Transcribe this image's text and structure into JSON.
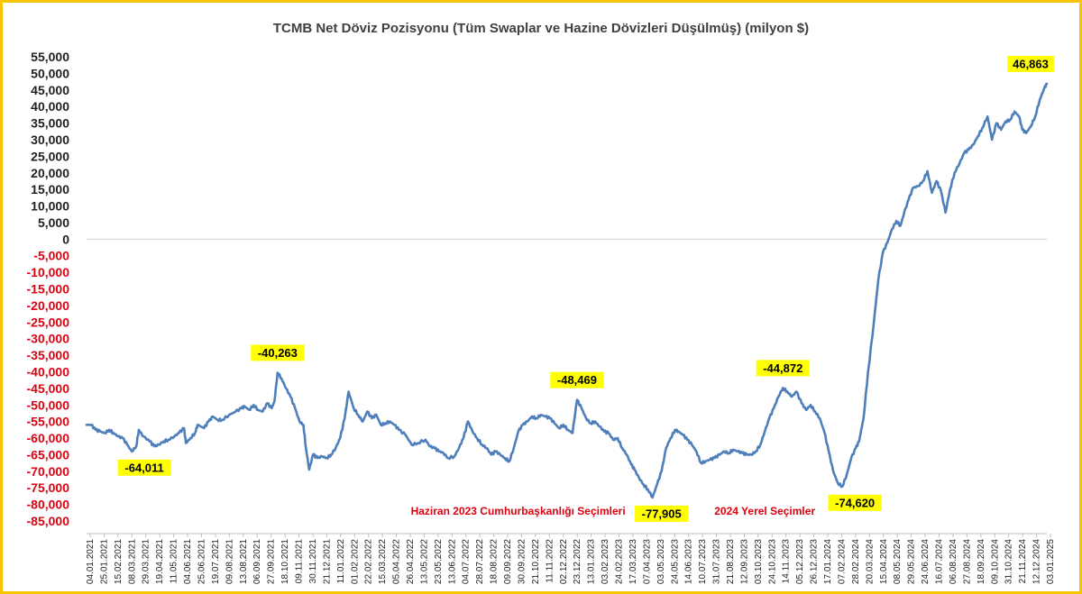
{
  "chart_data": {
    "type": "line",
    "title": "TCMB Net Döviz Pozisyonu (Tüm Swaplar ve Hazine Dövizleri Düşülmüş) (milyon $)",
    "xlabel": "",
    "ylabel": "",
    "ylim": [
      -85000,
      55000
    ],
    "ystep": 5000,
    "grid": false,
    "legend": "none",
    "line_color": "#4f7fbb",
    "positive_tick_color": "#1f1f1f",
    "negative_tick_color": "#e0000f",
    "label_bg_color": "#ffff00",
    "annotation_color": "#e0000f",
    "xlim": [
      "2021-01-04",
      "2025-01-31"
    ],
    "x_ticks": [
      "04.01.2021",
      "25.01.2021",
      "15.02.2021",
      "08.03.2021",
      "29.03.2021",
      "19.04.2021",
      "11.05.2021",
      "04.06.2021",
      "25.06.2021",
      "19.07.2021",
      "09.08.2021",
      "13.08.2021",
      "06.09.2021",
      "27.09.2021",
      "18.10.2021",
      "09.11.2021",
      "30.11.2021",
      "21.12.2021",
      "11.01.2022",
      "01.02.2022",
      "22.02.2022",
      "15.03.2022",
      "05.04.2022",
      "26.04.2022",
      "13.05.2022",
      "23.05.2022",
      "13.06.2022",
      "04.07.2022",
      "28.07.2022",
      "18.08.2022",
      "09.09.2022",
      "30.09.2022",
      "21.10.2022",
      "11.11.2022",
      "02.12.2022",
      "23.12.2022",
      "13.01.2023",
      "03.02.2023",
      "24.02.2023",
      "17.03.2023",
      "07.04.2023",
      "03.05.2023",
      "24.05.2023",
      "14.06.2023",
      "10.07.2023",
      "31.07.2023",
      "21.08.2023",
      "12.09.2023",
      "03.10.2023",
      "24.10.2023",
      "14.11.2023",
      "05.12.2023",
      "26.12.2023",
      "17.01.2024",
      "07.02.2024",
      "28.02.2024",
      "20.03.2024",
      "15.04.2024",
      "08.05.2024",
      "29.05.2024",
      "24.06.2024",
      "16.07.2024",
      "06.08.2024",
      "27.08.2024",
      "18.09.2024",
      "09.10.2024",
      "31.10.2024",
      "21.11.2024",
      "12.12.2024",
      "03.01.2025"
    ],
    "series": [
      {
        "values": [
          [
            "2021-01-04",
            -56000
          ],
          [
            "2021-01-11",
            -56000
          ],
          [
            "2021-01-18",
            -57500
          ],
          [
            "2021-01-25",
            -58000
          ],
          [
            "2021-02-01",
            -58500
          ],
          [
            "2021-02-08",
            -57500
          ],
          [
            "2021-02-15",
            -58500
          ],
          [
            "2021-02-22",
            -59500
          ],
          [
            "2021-03-01",
            -60000
          ],
          [
            "2021-03-08",
            -62000
          ],
          [
            "2021-03-15",
            -64011
          ],
          [
            "2021-03-22",
            -62500
          ],
          [
            "2021-03-26",
            -57500
          ],
          [
            "2021-04-02",
            -59500
          ],
          [
            "2021-04-12",
            -61000
          ],
          [
            "2021-04-19",
            -62500
          ],
          [
            "2021-04-26",
            -62000
          ],
          [
            "2021-05-03",
            -61000
          ],
          [
            "2021-05-11",
            -60500
          ],
          [
            "2021-05-20",
            -59500
          ],
          [
            "2021-05-27",
            -58500
          ],
          [
            "2021-06-04",
            -57000
          ],
          [
            "2021-06-07",
            -61500
          ],
          [
            "2021-06-14",
            -60000
          ],
          [
            "2021-06-21",
            -58500
          ],
          [
            "2021-06-25",
            -56000
          ],
          [
            "2021-07-05",
            -57000
          ],
          [
            "2021-07-12",
            -55000
          ],
          [
            "2021-07-19",
            -53500
          ],
          [
            "2021-07-26",
            -54500
          ],
          [
            "2021-08-02",
            -54500
          ],
          [
            "2021-08-13",
            -53000
          ],
          [
            "2021-08-23",
            -52000
          ],
          [
            "2021-09-01",
            -51000
          ],
          [
            "2021-09-06",
            -50500
          ],
          [
            "2021-09-13",
            -51500
          ],
          [
            "2021-09-20",
            -50000
          ],
          [
            "2021-09-27",
            -51500
          ],
          [
            "2021-10-04",
            -52000
          ],
          [
            "2021-10-11",
            -49500
          ],
          [
            "2021-10-18",
            -51000
          ],
          [
            "2021-10-22",
            -49000
          ],
          [
            "2021-10-27",
            -40263
          ],
          [
            "2021-11-02",
            -42000
          ],
          [
            "2021-11-09",
            -45000
          ],
          [
            "2021-11-16",
            -47500
          ],
          [
            "2021-11-23",
            -51000
          ],
          [
            "2021-11-30",
            -55000
          ],
          [
            "2021-12-06",
            -56000
          ],
          [
            "2021-12-10",
            -63000
          ],
          [
            "2021-12-15",
            -69500
          ],
          [
            "2021-12-21",
            -65000
          ],
          [
            "2021-12-28",
            -66000
          ],
          [
            "2022-01-04",
            -65500
          ],
          [
            "2022-01-11",
            -66000
          ],
          [
            "2022-01-18",
            -65000
          ],
          [
            "2022-01-25",
            -63000
          ],
          [
            "2022-02-01",
            -60000
          ],
          [
            "2022-02-08",
            -54000
          ],
          [
            "2022-02-14",
            -46000
          ],
          [
            "2022-02-22",
            -51000
          ],
          [
            "2022-03-01",
            -53000
          ],
          [
            "2022-03-08",
            -55000
          ],
          [
            "2022-03-15",
            -52000
          ],
          [
            "2022-03-22",
            -54000
          ],
          [
            "2022-03-29",
            -53000
          ],
          [
            "2022-04-05",
            -56000
          ],
          [
            "2022-04-12",
            -55500
          ],
          [
            "2022-04-19",
            -55000
          ],
          [
            "2022-04-26",
            -56000
          ],
          [
            "2022-05-03",
            -57500
          ],
          [
            "2022-05-13",
            -59000
          ],
          [
            "2022-05-23",
            -62000
          ],
          [
            "2022-06-01",
            -61500
          ],
          [
            "2022-06-13",
            -60500
          ],
          [
            "2022-06-20",
            -62500
          ],
          [
            "2022-06-27",
            -63000
          ],
          [
            "2022-07-04",
            -64000
          ],
          [
            "2022-07-11",
            -64500
          ],
          [
            "2022-07-18",
            -66000
          ],
          [
            "2022-07-28",
            -65500
          ],
          [
            "2022-08-04",
            -63000
          ],
          [
            "2022-08-11",
            -60000
          ],
          [
            "2022-08-18",
            -55000
          ],
          [
            "2022-08-25",
            -58000
          ],
          [
            "2022-09-01",
            -60000
          ],
          [
            "2022-09-09",
            -62000
          ],
          [
            "2022-09-16",
            -63000
          ],
          [
            "2022-09-23",
            -65000
          ],
          [
            "2022-09-30",
            -64000
          ],
          [
            "2022-10-07",
            -65000
          ],
          [
            "2022-10-14",
            -66000
          ],
          [
            "2022-10-21",
            -67000
          ],
          [
            "2022-10-28",
            -63000
          ],
          [
            "2022-11-04",
            -58000
          ],
          [
            "2022-11-11",
            -56000
          ],
          [
            "2022-11-18",
            -55000
          ],
          [
            "2022-11-25",
            -53500
          ],
          [
            "2022-12-02",
            -54000
          ],
          [
            "2022-12-09",
            -53000
          ],
          [
            "2022-12-16",
            -53500
          ],
          [
            "2022-12-23",
            -54000
          ],
          [
            "2022-12-30",
            -55500
          ],
          [
            "2023-01-06",
            -57000
          ],
          [
            "2023-01-13",
            -56000
          ],
          [
            "2023-01-20",
            -57500
          ],
          [
            "2023-01-27",
            -58500
          ],
          [
            "2023-02-03",
            -48469
          ],
          [
            "2023-02-10",
            -51000
          ],
          [
            "2023-02-17",
            -54000
          ],
          [
            "2023-02-24",
            -55500
          ],
          [
            "2023-03-03",
            -55000
          ],
          [
            "2023-03-10",
            -56500
          ],
          [
            "2023-03-17",
            -58000
          ],
          [
            "2023-03-24",
            -58500
          ],
          [
            "2023-03-31",
            -60500
          ],
          [
            "2023-04-07",
            -60000
          ],
          [
            "2023-04-14",
            -63000
          ],
          [
            "2023-04-21",
            -65000
          ],
          [
            "2023-04-28",
            -68000
          ],
          [
            "2023-05-03",
            -69500
          ],
          [
            "2023-05-10",
            -72000
          ],
          [
            "2023-05-17",
            -74000
          ],
          [
            "2023-05-24",
            -75500
          ],
          [
            "2023-05-31",
            -77905
          ],
          [
            "2023-06-07",
            -74000
          ],
          [
            "2023-06-14",
            -70000
          ],
          [
            "2023-06-21",
            -63000
          ],
          [
            "2023-06-28",
            -60000
          ],
          [
            "2023-07-05",
            -57500
          ],
          [
            "2023-07-10",
            -58000
          ],
          [
            "2023-07-17",
            -59000
          ],
          [
            "2023-07-24",
            -60500
          ],
          [
            "2023-07-31",
            -62000
          ],
          [
            "2023-08-07",
            -64000
          ],
          [
            "2023-08-14",
            -67500
          ],
          [
            "2023-08-21",
            -67000
          ],
          [
            "2023-08-28",
            -66500
          ],
          [
            "2023-09-04",
            -66000
          ],
          [
            "2023-09-12",
            -65000
          ],
          [
            "2023-09-19",
            -64000
          ],
          [
            "2023-09-26",
            -64500
          ],
          [
            "2023-10-03",
            -63500
          ],
          [
            "2023-10-10",
            -64000
          ],
          [
            "2023-10-17",
            -64500
          ],
          [
            "2023-10-24",
            -65000
          ],
          [
            "2023-10-31",
            -65000
          ],
          [
            "2023-11-07",
            -64000
          ],
          [
            "2023-11-14",
            -62000
          ],
          [
            "2023-11-21",
            -58000
          ],
          [
            "2023-11-28",
            -54000
          ],
          [
            "2023-12-05",
            -51000
          ],
          [
            "2023-12-12",
            -47500
          ],
          [
            "2023-12-19",
            -44872
          ],
          [
            "2023-12-26",
            -46000
          ],
          [
            "2024-01-02",
            -47500
          ],
          [
            "2024-01-09",
            -46000
          ],
          [
            "2024-01-17",
            -49500
          ],
          [
            "2024-01-24",
            -51500
          ],
          [
            "2024-01-31",
            -50000
          ],
          [
            "2024-02-07",
            -52000
          ],
          [
            "2024-02-14",
            -54000
          ],
          [
            "2024-02-21",
            -58000
          ],
          [
            "2024-02-28",
            -64000
          ],
          [
            "2024-03-06",
            -70000
          ],
          [
            "2024-03-13",
            -73500
          ],
          [
            "2024-03-20",
            -74620
          ],
          [
            "2024-03-27",
            -71000
          ],
          [
            "2024-04-03",
            -66000
          ],
          [
            "2024-04-10",
            -63000
          ],
          [
            "2024-04-15",
            -61000
          ],
          [
            "2024-04-22",
            -54000
          ],
          [
            "2024-04-29",
            -40000
          ],
          [
            "2024-05-08",
            -25000
          ],
          [
            "2024-05-15",
            -12000
          ],
          [
            "2024-05-22",
            -4000
          ],
          [
            "2024-05-29",
            -1000
          ],
          [
            "2024-06-05",
            3000
          ],
          [
            "2024-06-12",
            5500
          ],
          [
            "2024-06-18",
            4000
          ],
          [
            "2024-06-24",
            8000
          ],
          [
            "2024-07-01",
            12000
          ],
          [
            "2024-07-08",
            15500
          ],
          [
            "2024-07-16",
            16000
          ],
          [
            "2024-07-23",
            17500
          ],
          [
            "2024-07-30",
            20500
          ],
          [
            "2024-08-06",
            14000
          ],
          [
            "2024-08-13",
            17500
          ],
          [
            "2024-08-20",
            14500
          ],
          [
            "2024-08-27",
            8000
          ],
          [
            "2024-09-03",
            15000
          ],
          [
            "2024-09-10",
            20000
          ],
          [
            "2024-09-18",
            23000
          ],
          [
            "2024-09-25",
            26000
          ],
          [
            "2024-10-02",
            27000
          ],
          [
            "2024-10-09",
            28500
          ],
          [
            "2024-10-16",
            31000
          ],
          [
            "2024-10-23",
            33500
          ],
          [
            "2024-10-31",
            37000
          ],
          [
            "2024-11-07",
            30000
          ],
          [
            "2024-11-14",
            35000
          ],
          [
            "2024-11-21",
            33000
          ],
          [
            "2024-11-28",
            35500
          ],
          [
            "2024-12-05",
            36000
          ],
          [
            "2024-12-12",
            38500
          ],
          [
            "2024-12-19",
            37000
          ],
          [
            "2024-12-24",
            33000
          ],
          [
            "2024-12-30",
            32000
          ],
          [
            "2025-01-06",
            34000
          ],
          [
            "2025-01-13",
            37000
          ],
          [
            "2025-01-20",
            42000
          ],
          [
            "2025-01-27",
            45500
          ],
          [
            "2025-01-31",
            46863
          ]
        ]
      }
    ],
    "data_labels": [
      {
        "date": "2021-03-15",
        "value": -64011,
        "text": "-64,011",
        "place": "below-right"
      },
      {
        "date": "2021-10-27",
        "value": -40263,
        "text": "-40,263",
        "place": "above"
      },
      {
        "date": "2023-02-03",
        "value": -48469,
        "text": "-48,469",
        "place": "above"
      },
      {
        "date": "2023-05-31",
        "value": -77905,
        "text": "-77,905",
        "place": "below"
      },
      {
        "date": "2023-12-19",
        "value": -44872,
        "text": "-44,872",
        "place": "above"
      },
      {
        "date": "2024-03-20",
        "value": -74620,
        "text": "-74,620",
        "place": "below-right"
      },
      {
        "date": "2025-01-31",
        "value": 46863,
        "text": "46,863",
        "place": "above-left"
      }
    ],
    "annotations": [
      {
        "text": "Haziran 2023 Cumhurbaşkanlığı Seçimleri",
        "anchor_date": "2023-05-31",
        "value": -82000,
        "align": "end"
      },
      {
        "text": "2024 Yerel Seçimler",
        "anchor_date": "2024-03-20",
        "value": -82000,
        "align": "end"
      }
    ]
  }
}
